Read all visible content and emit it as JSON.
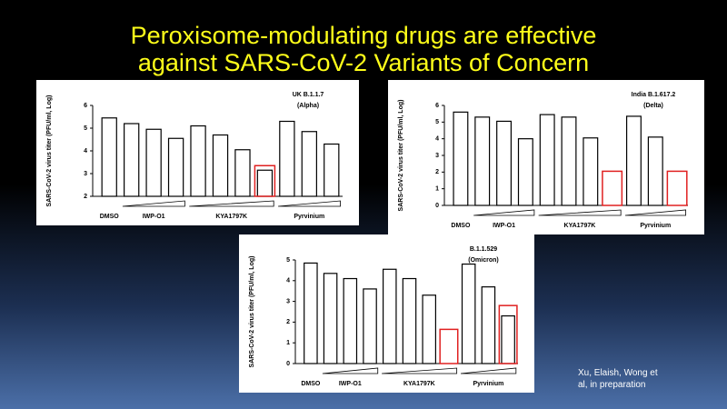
{
  "title": [
    "Peroxisome-modulating drugs are effective",
    "against SARS-CoV-2 Variants of Concern"
  ],
  "note": [
    "Xu, Elaish, Wong et",
    "al, in preparation"
  ],
  "chart_data": [
    {
      "type": "bar",
      "annotation": [
        "UK B.1.1.7",
        "(Alpha)"
      ],
      "ylabel": "SARS-CoV-2 virus titer (PFU/ml, Log)",
      "categories": [
        "DMSO",
        "IWP-O1",
        null,
        null,
        "KYA1797K",
        null,
        null,
        null,
        "Pyrvinium",
        null,
        null
      ],
      "values": [
        5.45,
        5.2,
        4.95,
        4.55,
        5.1,
        4.7,
        4.05,
        3.15,
        5.3,
        4.85,
        4.3
      ],
      "color": "#ffffff",
      "highlights": [
        {
          "category": 7,
          "ymax": 3.35
        }
      ],
      "highlight_color": "#e02020",
      "ylim": [
        2,
        6
      ],
      "yticks": [
        2,
        3,
        4,
        5,
        6
      ]
    },
    {
      "type": "bar",
      "annotation": [
        "India B.1.617.2",
        "(Delta)"
      ],
      "ylabel": "SARS-CoV-2 virus titer (PFU/ml, Log)",
      "categories": [
        "DMSO",
        "IWP-O1",
        null,
        null,
        "KYA1797K",
        null,
        null,
        null,
        "Pyrvinium",
        null,
        null
      ],
      "values": [
        5.6,
        5.3,
        5.05,
        4.0,
        5.45,
        5.3,
        4.05,
        0,
        5.35,
        4.1,
        0
      ],
      "color": "#ffffff",
      "highlights": [
        {
          "category": 7,
          "ymax": 2.05
        },
        {
          "category": 10,
          "ymax": 2.05
        }
      ],
      "highlight_color": "#e02020",
      "ylim": [
        0,
        6
      ],
      "yticks": [
        0,
        1,
        2,
        3,
        4,
        5,
        6
      ]
    },
    {
      "type": "bar",
      "annotation": [
        "B.1.1.529",
        "(Omicron)"
      ],
      "ylabel": "SARS-CoV-2 virus titer (PFU/ml, Log)",
      "categories": [
        "DMSO",
        "IWP-O1",
        null,
        null,
        "KYA1797K",
        null,
        null,
        null,
        "Pyrvinium",
        null,
        null
      ],
      "values": [
        4.85,
        4.35,
        4.1,
        3.6,
        4.55,
        4.1,
        3.3,
        0,
        4.8,
        3.7,
        2.3
      ],
      "color": "#ffffff",
      "highlights": [
        {
          "category": 7,
          "ymax": 1.65
        },
        {
          "category": 10,
          "ymax": 2.8
        }
      ],
      "highlight_color": "#e02020",
      "ylim": [
        0,
        5
      ],
      "yticks": [
        0,
        1,
        2,
        3,
        4,
        5
      ]
    }
  ]
}
